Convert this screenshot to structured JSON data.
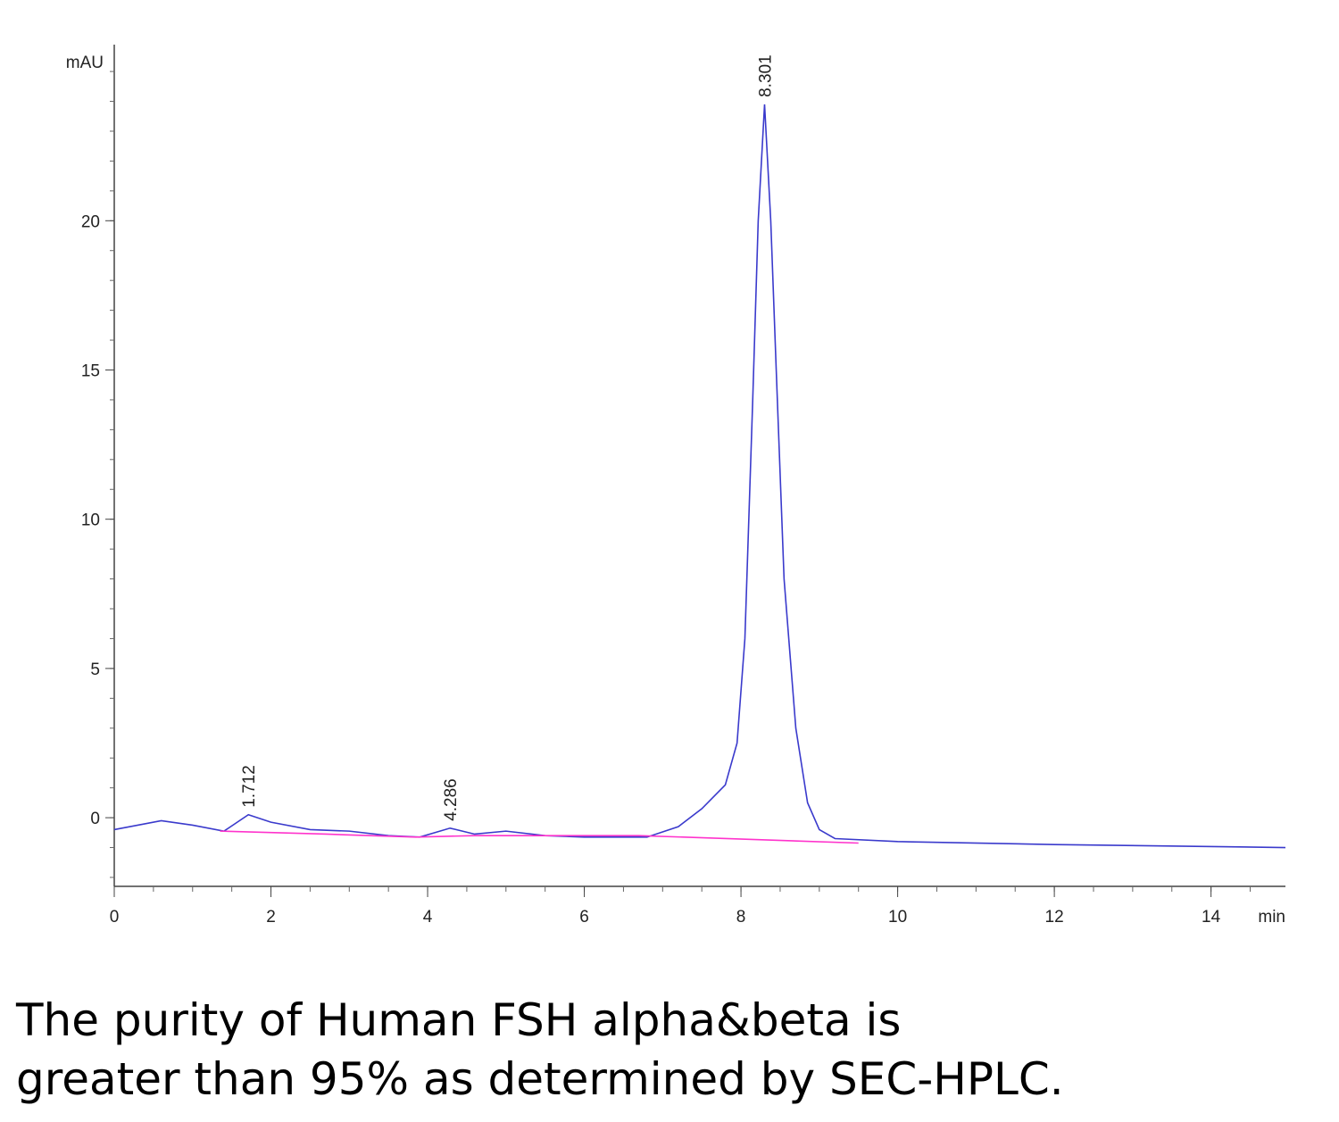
{
  "chart_data": {
    "type": "line",
    "y_label": "mAU",
    "x_label": "min",
    "xlim": [
      0,
      14.95
    ],
    "ylim": [
      -2.3,
      25.9
    ],
    "xticks": [
      0,
      2,
      4,
      6,
      8,
      10,
      12,
      14
    ],
    "yticks": [
      0,
      5,
      10,
      15,
      20
    ],
    "series": [
      {
        "color": "#3a3acc",
        "x": [
          0,
          0.6,
          1.0,
          1.4,
          1.712,
          2.0,
          2.5,
          3.0,
          3.5,
          3.9,
          4.286,
          4.6,
          5.0,
          5.5,
          6.0,
          6.8,
          7.2,
          7.5,
          7.8,
          7.95,
          8.05,
          8.15,
          8.22,
          8.301,
          8.38,
          8.45,
          8.55,
          8.7,
          8.85,
          9.0,
          9.2,
          10,
          12,
          14.95
        ],
        "values": [
          -0.4,
          -0.1,
          -0.25,
          -0.45,
          0.1,
          -0.15,
          -0.4,
          -0.45,
          -0.6,
          -0.65,
          -0.35,
          -0.55,
          -0.45,
          -0.6,
          -0.65,
          -0.65,
          -0.3,
          0.3,
          1.1,
          2.5,
          6,
          14,
          20,
          23.9,
          20,
          15,
          8,
          3,
          0.5,
          -0.4,
          -0.7,
          -0.8,
          -0.9,
          -1.0
        ]
      },
      {
        "color": "#ff33cc",
        "x": [
          1.35,
          2.7,
          3.85,
          4.6,
          6.7,
          9.5
        ],
        "values": [
          -0.45,
          -0.55,
          -0.65,
          -0.6,
          -0.6,
          -0.85
        ]
      }
    ],
    "annotations": [
      {
        "x": 1.712,
        "y": 0.1
      },
      {
        "x": 4.286,
        "y": -0.35
      },
      {
        "x": 8.301,
        "y": 23.9
      }
    ]
  },
  "caption": [
    "The purity of Human FSH alpha&beta is",
    "greater than 95% as determined by SEC-HPLC."
  ]
}
